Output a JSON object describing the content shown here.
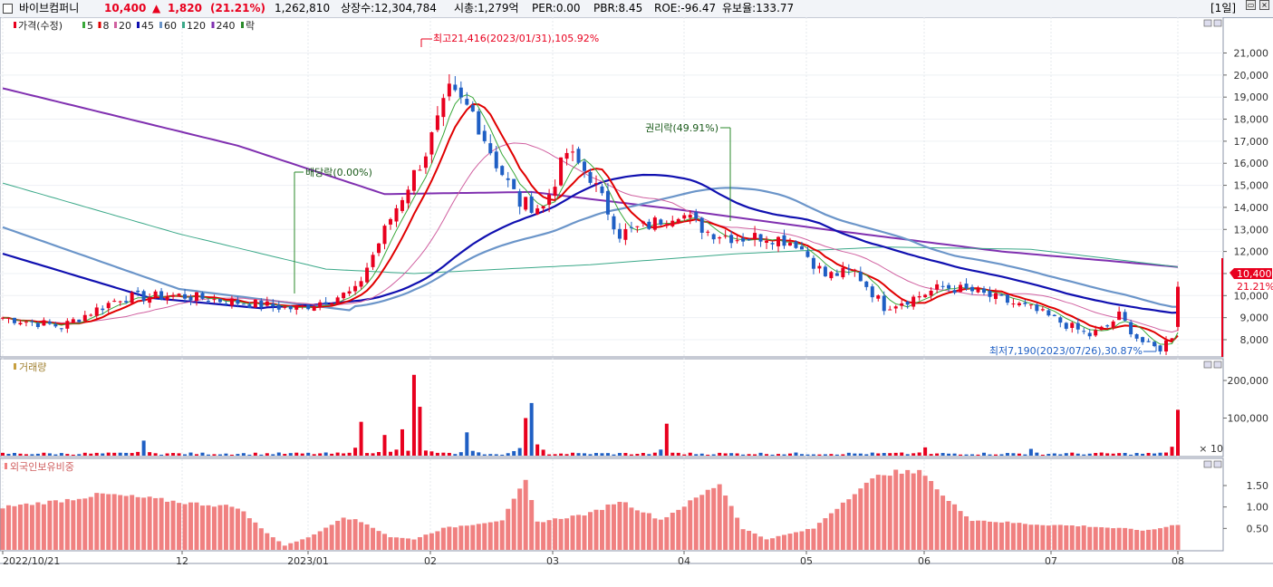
{
  "header": {
    "stock_name": "바이브컴퍼니",
    "price": "10,400",
    "change_arrow": "▲",
    "change": "1,820",
    "change_pct": "(21.21%)",
    "volume": "1,262,810",
    "listed_shares": "상장수:12,304,784",
    "market_cap": "시총:1,279억",
    "per": "PER:0.00",
    "pbr": "PBR:8.45",
    "roe": "ROE:-96.47",
    "retention": "유보율:133.77",
    "period": "[1일]"
  },
  "colors": {
    "up": "#e8001e",
    "down": "#1f5fc4",
    "ma5": "#3aa83a",
    "ma8": "#e00000",
    "ma20": "#d060a0",
    "ma45": "#1010b0",
    "ma60": "#6b95c9",
    "ma120": "#3aa888",
    "ma240": "#8030b0",
    "foreign": "#f08080"
  },
  "price_panel": {
    "legend": [
      {
        "label": "가격(수정)",
        "color": "#e8001e"
      },
      {
        "label": "5",
        "color": "#3aa83a"
      },
      {
        "label": "8",
        "color": "#e00000"
      },
      {
        "label": "20",
        "color": "#d060a0"
      },
      {
        "label": "45",
        "color": "#1010b0"
      },
      {
        "label": "60",
        "color": "#6b95c9"
      },
      {
        "label": "120",
        "color": "#3aa888"
      },
      {
        "label": "240",
        "color": "#8030b0"
      },
      {
        "label": "락",
        "color": "#2a8a2a"
      }
    ],
    "high_label": "최고21,416(2023/01/31),105.92%",
    "low_label": "최저7,190(2023/07/26),30.87%",
    "dividend_label": "배당락(0.00%)",
    "rights_label": "권리락(49.91%)",
    "last_price_tag": "10,400",
    "last_pct_tag": "21.21%"
  },
  "volume_panel": {
    "legend": "거래량",
    "scale_note": "× 10"
  },
  "foreign_panel": {
    "legend": "외국인보유비중"
  },
  "chart_data": [
    {
      "type": "candlestick",
      "y_ticks": [
        "21,000",
        "20,000",
        "19,000",
        "18,000",
        "17,000",
        "16,000",
        "15,000",
        "14,000",
        "13,000",
        "12,000",
        "11,000",
        "10,000",
        "9,000",
        "8,000"
      ],
      "ylim": [
        7000,
        22000
      ],
      "x_ticks": [
        "2022/10/21",
        "12",
        "2023/01",
        "02",
        "03",
        "04",
        "05",
        "06",
        "07",
        "08"
      ],
      "anchors_close": [
        [
          0,
          9000
        ],
        [
          10,
          8600
        ],
        [
          20,
          9900
        ],
        [
          30,
          10000
        ],
        [
          40,
          9700
        ],
        [
          50,
          9400
        ],
        [
          60,
          10200
        ],
        [
          66,
          13500
        ],
        [
          72,
          16500
        ],
        [
          76,
          19200
        ],
        [
          80,
          18300
        ],
        [
          84,
          16000
        ],
        [
          88,
          14200
        ],
        [
          92,
          14000
        ],
        [
          96,
          16500
        ],
        [
          100,
          15400
        ],
        [
          105,
          12800
        ],
        [
          110,
          13200
        ],
        [
          115,
          13800
        ],
        [
          120,
          12900
        ],
        [
          125,
          12600
        ],
        [
          130,
          12700
        ],
        [
          135,
          12400
        ],
        [
          140,
          10900
        ],
        [
          145,
          11100
        ],
        [
          150,
          9500
        ],
        [
          155,
          9900
        ],
        [
          160,
          10400
        ],
        [
          165,
          10200
        ],
        [
          170,
          9800
        ],
        [
          175,
          9400
        ],
        [
          180,
          8800
        ],
        [
          185,
          8200
        ],
        [
          188,
          8600
        ],
        [
          190,
          9100
        ],
        [
          193,
          8100
        ],
        [
          195,
          7700
        ],
        [
          197,
          7600
        ],
        [
          199,
          8200
        ],
        [
          200,
          10400
        ]
      ],
      "high_label_price": 21416,
      "low_label_price": 7190,
      "last_price": 10400
    },
    {
      "type": "bar",
      "name": "거래량",
      "y_ticks": [
        "200,000",
        "100,000"
      ],
      "ylim": [
        0,
        230000
      ],
      "spikes": [
        [
          24,
          40000
        ],
        [
          61,
          90000
        ],
        [
          65,
          55000
        ],
        [
          68,
          70000
        ],
        [
          70,
          215000
        ],
        [
          71,
          130000
        ],
        [
          79,
          62000
        ],
        [
          89,
          100000
        ],
        [
          90,
          140000
        ],
        [
          113,
          85000
        ],
        [
          157,
          22000
        ],
        [
          175,
          18000
        ],
        [
          200,
          122000
        ]
      ],
      "base_value": 5000
    },
    {
      "type": "bar",
      "name": "외국인보유비중",
      "y_ticks": [
        "1.50",
        "1.00",
        "0.50"
      ],
      "ylim": [
        0,
        1.9
      ],
      "anchors": [
        [
          0,
          1.0
        ],
        [
          10,
          1.15
        ],
        [
          17,
          1.3
        ],
        [
          25,
          1.2
        ],
        [
          31,
          1.1
        ],
        [
          40,
          1.0
        ],
        [
          44,
          0.5
        ],
        [
          48,
          0.1
        ],
        [
          53,
          0.35
        ],
        [
          58,
          0.78
        ],
        [
          62,
          0.6
        ],
        [
          66,
          0.3
        ],
        [
          70,
          0.25
        ],
        [
          75,
          0.5
        ],
        [
          85,
          0.7
        ],
        [
          89,
          1.6
        ],
        [
          91,
          0.65
        ],
        [
          100,
          0.85
        ],
        [
          105,
          1.15
        ],
        [
          112,
          0.7
        ],
        [
          118,
          1.2
        ],
        [
          122,
          1.55
        ],
        [
          126,
          0.5
        ],
        [
          130,
          0.25
        ],
        [
          138,
          0.5
        ],
        [
          145,
          1.35
        ],
        [
          150,
          1.8
        ],
        [
          157,
          1.8
        ],
        [
          160,
          1.25
        ],
        [
          165,
          0.7
        ],
        [
          175,
          0.6
        ],
        [
          185,
          0.55
        ],
        [
          195,
          0.45
        ],
        [
          200,
          0.6
        ]
      ]
    }
  ]
}
